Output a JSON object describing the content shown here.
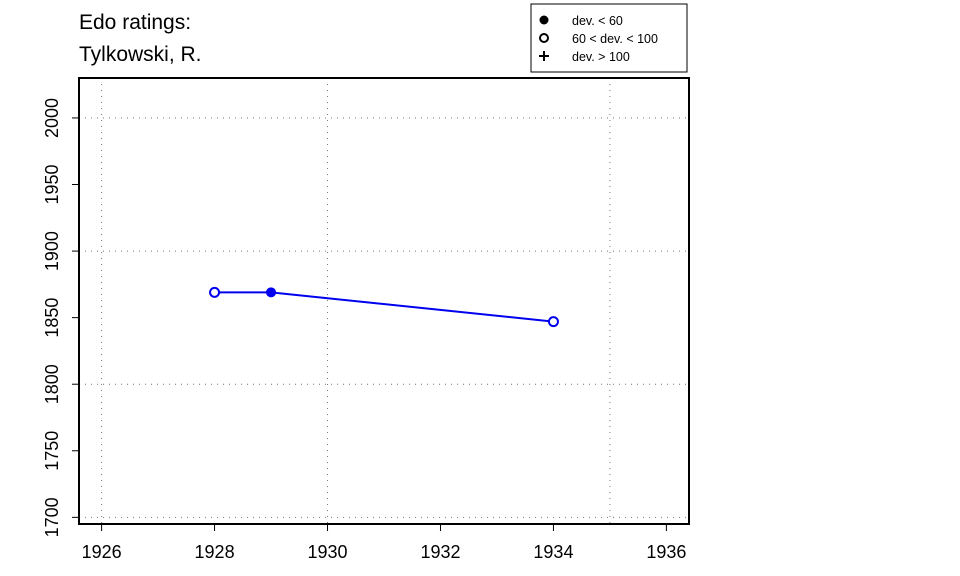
{
  "chart_data": {
    "type": "line",
    "title_lines": [
      "Edo ratings:",
      "Tylkowski, R."
    ],
    "xlabel": "",
    "ylabel": "",
    "xlim": [
      1925.6,
      1936.4
    ],
    "ylim": [
      1695,
      2030
    ],
    "x_ticks": [
      1926,
      1928,
      1930,
      1932,
      1934,
      1936
    ],
    "y_ticks": [
      1700,
      1750,
      1800,
      1850,
      1900,
      1950,
      2000
    ],
    "x_grid": [
      1926,
      1930,
      1935
    ],
    "y_grid": [
      1700,
      1800,
      1900,
      2000
    ],
    "grid": true,
    "legend_position": "top-right, above plot",
    "legend": [
      {
        "label": "dev. < 60",
        "marker": "filled-circle"
      },
      {
        "label": "60 < dev. < 100",
        "marker": "open-circle"
      },
      {
        "label": "dev. > 100",
        "marker": "plus"
      }
    ],
    "series": [
      {
        "color": "#0000ee",
        "points": [
          {
            "x": 1928,
            "y": 1869,
            "marker": "open-circle"
          },
          {
            "x": 1929,
            "y": 1869,
            "marker": "filled-circle"
          },
          {
            "x": 1934,
            "y": 1847,
            "marker": "open-circle"
          }
        ]
      }
    ]
  }
}
